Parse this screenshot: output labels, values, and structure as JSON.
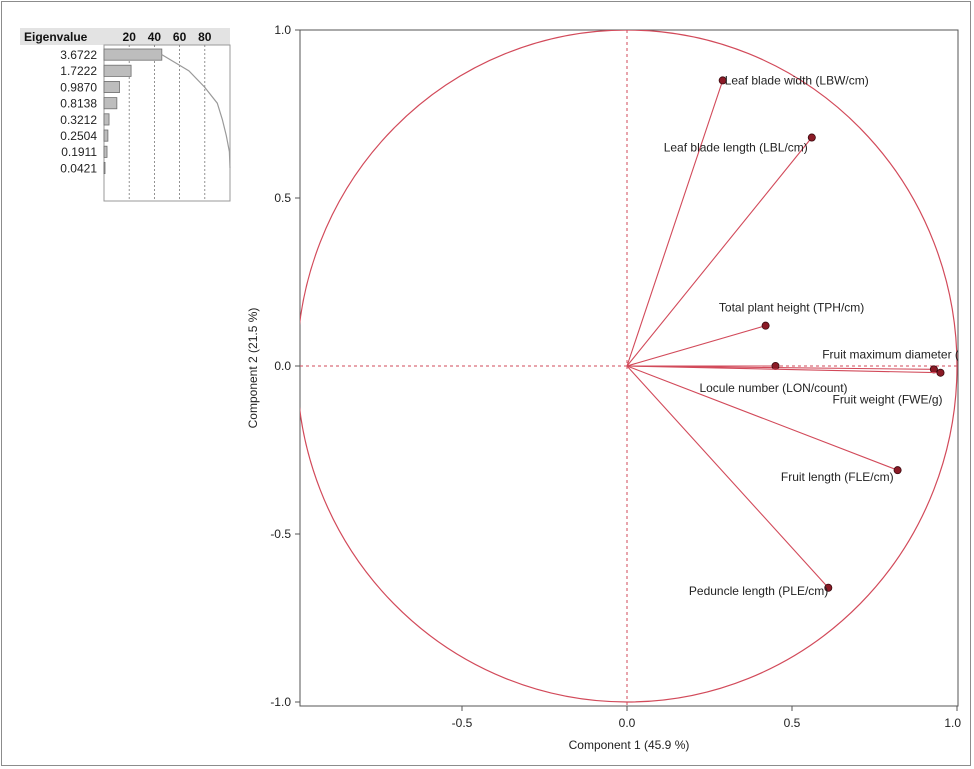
{
  "chart_data": [
    {
      "type": "bar",
      "title": "",
      "column_header": "Eigenvalue",
      "scale_ticks": [
        20,
        40,
        60,
        80
      ],
      "eigenvalues": [
        "3.6722",
        "1.7222",
        "0.9870",
        "0.8138",
        "0.3212",
        "0.2504",
        "0.1911",
        "0.0421"
      ],
      "percent": [
        45.9,
        21.5,
        12.3,
        10.2,
        4.0,
        3.1,
        2.4,
        0.5
      ],
      "cumulative_percent": [
        45.9,
        67.4,
        79.8,
        89.9,
        93.9,
        97.1,
        99.5,
        100.0
      ],
      "bar_color": "#bdbdbd",
      "line_color": "#9a9a9a"
    },
    {
      "type": "scatter",
      "subtype": "loading-plot",
      "xlabel": "Component 1  (45.9 %)",
      "ylabel": "Component 2  (21.5 %)",
      "xlim": [
        -1.0,
        1.0
      ],
      "ylim": [
        -1.0,
        1.0
      ],
      "x_ticks": [
        "-0.5",
        "0.0",
        "0.5",
        "1.0"
      ],
      "y_ticks": [
        "1.0",
        "0.5",
        "0.0",
        "-0.5",
        "-1.0"
      ],
      "circle_radius": 1.0,
      "line_color": "#d24a5a",
      "point_color": "#8b1a26",
      "variables": [
        {
          "label": "Leaf blade width (LBW/cm)",
          "x": 0.29,
          "y": 0.85
        },
        {
          "label": "Leaf blade length (LBL/cm)",
          "x": 0.56,
          "y": 0.68
        },
        {
          "label": "Total plant height (TPH/cm)",
          "x": 0.42,
          "y": 0.12
        },
        {
          "label": "Fruit maximum diameter (",
          "x": 0.93,
          "y": -0.01
        },
        {
          "label": "Locule number (LON/count)",
          "x": 0.45,
          "y": 0.0
        },
        {
          "label": "Fruit weight (FWE/g)",
          "x": 0.95,
          "y": -0.02
        },
        {
          "label": "Fruit length (FLE/cm)",
          "x": 0.82,
          "y": -0.31
        },
        {
          "label": "Peduncle length (PLE/cm)",
          "x": 0.61,
          "y": -0.66
        }
      ]
    }
  ]
}
